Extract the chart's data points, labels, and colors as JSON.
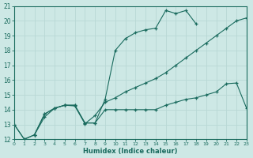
{
  "xlabel": "Humidex (Indice chaleur)",
  "xlim": [
    0,
    23
  ],
  "ylim": [
    12,
    21
  ],
  "yticks": [
    12,
    13,
    14,
    15,
    16,
    17,
    18,
    19,
    20,
    21
  ],
  "xticks": [
    0,
    1,
    2,
    3,
    4,
    5,
    6,
    7,
    8,
    9,
    10,
    11,
    12,
    13,
    14,
    15,
    16,
    17,
    18,
    19,
    20,
    21,
    22,
    23
  ],
  "bg_color": "#cde8e5",
  "grid_color": "#b8d8d5",
  "line_color": "#1a6b5e",
  "curve1_x": [
    0,
    1,
    2,
    3,
    4,
    5,
    6,
    7,
    8,
    9,
    10,
    11,
    12,
    13,
    14,
    15,
    16,
    17,
    18
  ],
  "curve1_y": [
    13.0,
    12.0,
    12.3,
    13.7,
    14.1,
    14.3,
    14.3,
    13.1,
    13.1,
    14.7,
    18.0,
    18.8,
    19.2,
    19.4,
    19.5,
    20.7,
    20.5,
    20.7,
    19.8
  ],
  "curve2_x": [
    2,
    3,
    4,
    5,
    6,
    7,
    8,
    9,
    10,
    11,
    12,
    13,
    14,
    15,
    16,
    17,
    18,
    19,
    20,
    21,
    22,
    23
  ],
  "curve2_y": [
    12.3,
    13.7,
    14.1,
    14.3,
    14.3,
    13.1,
    13.1,
    14.0,
    14.0,
    14.0,
    14.0,
    14.0,
    14.0,
    14.3,
    14.5,
    14.7,
    14.8,
    15.0,
    15.2,
    15.75,
    15.8,
    14.1
  ],
  "curve3_x": [
    0,
    1,
    2,
    3,
    4,
    5,
    6,
    7,
    8,
    9,
    10,
    11,
    12,
    13,
    14,
    15,
    16,
    17,
    18,
    19,
    20,
    21,
    22,
    23
  ],
  "curve3_y": [
    13.0,
    12.0,
    12.3,
    13.5,
    14.1,
    14.3,
    14.25,
    13.05,
    13.6,
    14.5,
    14.8,
    15.2,
    15.5,
    15.8,
    16.1,
    16.5,
    17.0,
    17.5,
    18.0,
    18.5,
    19.0,
    19.5,
    20.0,
    20.2
  ]
}
